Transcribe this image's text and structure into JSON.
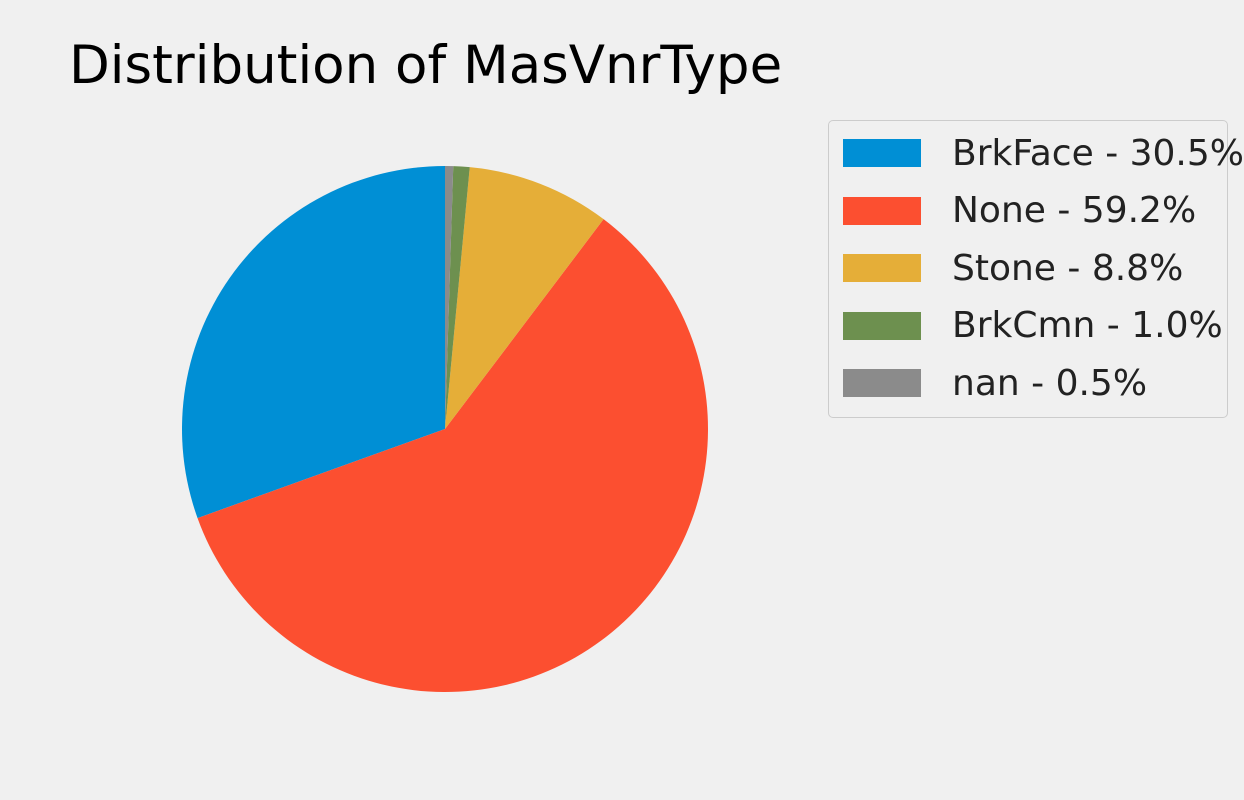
{
  "chart_data": {
    "type": "pie",
    "title": "Distribution of MasVnrType",
    "start_angle_deg": 90,
    "direction": "counterclockwise",
    "legend_position": "upper-right",
    "slices": [
      {
        "name": "BrkFace",
        "percent": 30.5,
        "label": "BrkFace - 30.5%",
        "color": "#008fd5"
      },
      {
        "name": "None",
        "percent": 59.2,
        "label": "None - 59.2%",
        "color": "#fc4f30"
      },
      {
        "name": "Stone",
        "percent": 8.8,
        "label": "Stone - 8.8%",
        "color": "#e5ae38"
      },
      {
        "name": "BrkCmn",
        "percent": 1.0,
        "label": "BrkCmn - 1.0%",
        "color": "#6d904f"
      },
      {
        "name": "nan",
        "percent": 0.5,
        "label": "nan - 0.5%",
        "color": "#8b8b8b"
      }
    ]
  }
}
